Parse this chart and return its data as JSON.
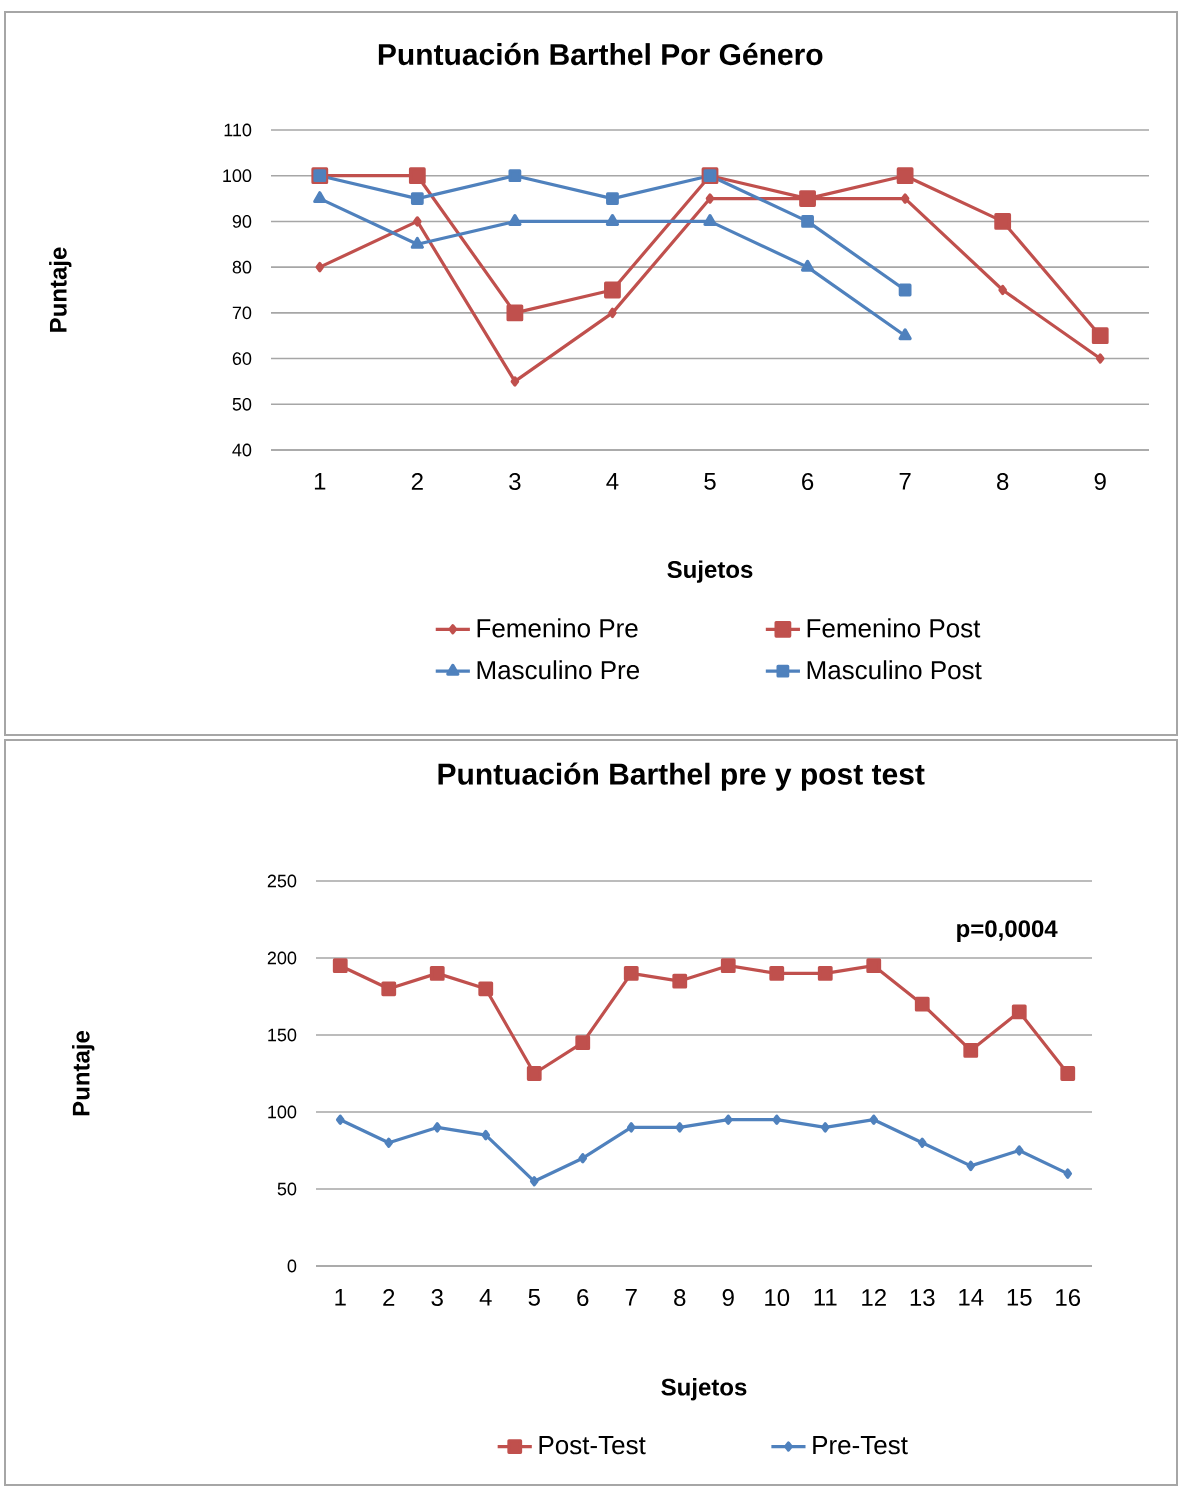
{
  "chart_data": [
    {
      "type": "line",
      "title": "Puntuación Barthel Por Género",
      "xlabel": "Sujetos",
      "ylabel": "Puntaje",
      "categories": [
        "1",
        "2",
        "3",
        "4",
        "5",
        "6",
        "7",
        "8",
        "9"
      ],
      "ylim": [
        40,
        110
      ],
      "yticks": [
        40,
        50,
        60,
        70,
        80,
        90,
        100,
        110
      ],
      "grid": "y",
      "legend": "bottom",
      "series": [
        {
          "name": "Femenino Pre",
          "color": "#c0504d",
          "marker": "diamond",
          "values": [
            80,
            90,
            55,
            70,
            95,
            95,
            95,
            75,
            60
          ]
        },
        {
          "name": "Femenino Post",
          "color": "#c0504d",
          "marker": "square",
          "values": [
            100,
            100,
            70,
            75,
            100,
            95,
            100,
            90,
            65
          ]
        },
        {
          "name": "Masculino Pre",
          "color": "#4f81bd",
          "marker": "triangle",
          "values": [
            95,
            85,
            90,
            90,
            90,
            80,
            65,
            null,
            null
          ]
        },
        {
          "name": "Masculino Post",
          "color": "#4f81bd",
          "marker": "square",
          "values": [
            100,
            95,
            100,
            95,
            100,
            90,
            75,
            null,
            null
          ]
        }
      ]
    },
    {
      "type": "line",
      "title": "Puntuación Barthel pre y post test",
      "xlabel": "Sujetos",
      "ylabel": "Puntaje",
      "categories": [
        "1",
        "2",
        "3",
        "4",
        "5",
        "6",
        "7",
        "8",
        "9",
        "10",
        "11",
        "12",
        "13",
        "14",
        "15",
        "16"
      ],
      "ylim": [
        0,
        250
      ],
      "yticks": [
        0,
        50,
        100,
        150,
        200,
        250
      ],
      "grid": "y",
      "legend": "bottom",
      "annotations": [
        "p=0,0004"
      ],
      "series": [
        {
          "name": "Post-Test",
          "color": "#c0504d",
          "marker": "square",
          "values": [
            195,
            180,
            190,
            180,
            125,
            145,
            190,
            185,
            195,
            190,
            190,
            195,
            170,
            140,
            165,
            125
          ]
        },
        {
          "name": "Pre-Test",
          "color": "#4f81bd",
          "marker": "diamond",
          "values": [
            95,
            80,
            90,
            85,
            55,
            70,
            90,
            90,
            95,
            95,
            90,
            95,
            80,
            65,
            75,
            60
          ]
        }
      ]
    }
  ]
}
